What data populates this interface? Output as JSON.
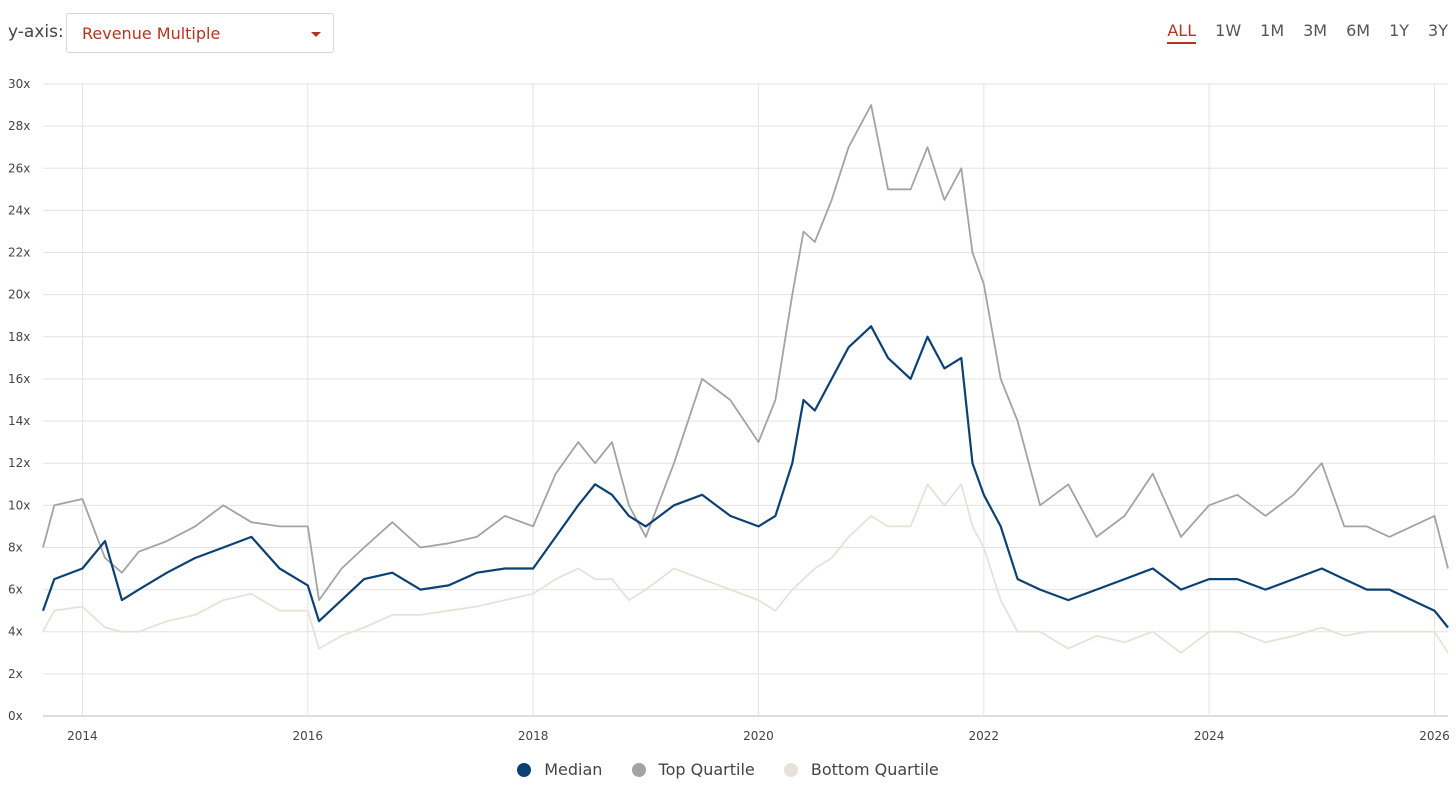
{
  "controls": {
    "yaxis_label": "y-axis:",
    "metric_selected": "Revenue Multiple",
    "range_tabs": [
      "ALL",
      "1W",
      "1M",
      "3M",
      "6M",
      "1Y",
      "3Y"
    ],
    "active_range": "ALL"
  },
  "chart_data": {
    "type": "line",
    "title": "",
    "xlabel": "",
    "ylabel": "",
    "x_domain": [
      2013.65,
      2026.12
    ],
    "ylim": [
      0,
      30
    ],
    "x_ticks": [
      {
        "value": 2014,
        "label": "2014"
      },
      {
        "value": 2016,
        "label": "2016"
      },
      {
        "value": 2018,
        "label": "2018"
      },
      {
        "value": 2020,
        "label": "2020"
      },
      {
        "value": 2022,
        "label": "2022"
      },
      {
        "value": 2024,
        "label": "2024"
      },
      {
        "value": 2026,
        "label": "2026"
      }
    ],
    "y_ticks": [
      {
        "value": 0,
        "label": "0x"
      },
      {
        "value": 2,
        "label": "2x"
      },
      {
        "value": 4,
        "label": "4x"
      },
      {
        "value": 6,
        "label": "6x"
      },
      {
        "value": 8,
        "label": "8x"
      },
      {
        "value": 10,
        "label": "10x"
      },
      {
        "value": 12,
        "label": "12x"
      },
      {
        "value": 14,
        "label": "14x"
      },
      {
        "value": 16,
        "label": "16x"
      },
      {
        "value": 18,
        "label": "18x"
      },
      {
        "value": 20,
        "label": "20x"
      },
      {
        "value": 22,
        "label": "22x"
      },
      {
        "value": 24,
        "label": "24x"
      },
      {
        "value": 26,
        "label": "26x"
      },
      {
        "value": 28,
        "label": "28x"
      },
      {
        "value": 30,
        "label": "30x"
      }
    ],
    "grid": true,
    "legend": "bottom-center",
    "x": [
      2013.65,
      2013.75,
      2014.0,
      2014.2,
      2014.35,
      2014.5,
      2014.75,
      2015.0,
      2015.25,
      2015.5,
      2015.75,
      2016.0,
      2016.1,
      2016.3,
      2016.5,
      2016.75,
      2017.0,
      2017.25,
      2017.5,
      2017.75,
      2018.0,
      2018.2,
      2018.4,
      2018.55,
      2018.7,
      2018.85,
      2019.0,
      2019.25,
      2019.5,
      2019.75,
      2020.0,
      2020.15,
      2020.3,
      2020.4,
      2020.5,
      2020.65,
      2020.8,
      2021.0,
      2021.15,
      2021.35,
      2021.5,
      2021.65,
      2021.8,
      2021.9,
      2022.0,
      2022.15,
      2022.3,
      2022.5,
      2022.75,
      2023.0,
      2023.25,
      2023.5,
      2023.75,
      2024.0,
      2024.25,
      2024.5,
      2024.75,
      2025.0,
      2025.2,
      2025.4,
      2025.6,
      2025.8,
      2026.0,
      2026.12
    ],
    "series": [
      {
        "name": "Top Quartile",
        "color": "#a3a3a3",
        "values": [
          8.0,
          10.0,
          10.3,
          7.5,
          6.8,
          7.8,
          8.3,
          9.0,
          10.0,
          9.2,
          9.0,
          9.0,
          5.5,
          7.0,
          8.0,
          9.2,
          8.0,
          8.2,
          8.5,
          9.5,
          9.0,
          11.5,
          13.0,
          12.0,
          13.0,
          10.0,
          8.5,
          12.0,
          16.0,
          15.0,
          13.0,
          15.0,
          20.0,
          23.0,
          22.5,
          24.5,
          27.0,
          29.0,
          25.0,
          25.0,
          27.0,
          24.5,
          26.0,
          22.0,
          20.5,
          16.0,
          14.0,
          10.0,
          11.0,
          8.5,
          9.5,
          11.5,
          8.5,
          10.0,
          10.5,
          9.5,
          10.5,
          12.0,
          9.0,
          9.0,
          8.5,
          9.0,
          9.5,
          7.0
        ]
      },
      {
        "name": "Median",
        "color": "#0d4174",
        "values": [
          5.0,
          6.5,
          7.0,
          8.3,
          5.5,
          6.0,
          6.8,
          7.5,
          8.0,
          8.5,
          7.0,
          6.2,
          4.5,
          5.5,
          6.5,
          6.8,
          6.0,
          6.2,
          6.8,
          7.0,
          7.0,
          8.5,
          10.0,
          11.0,
          10.5,
          9.5,
          9.0,
          10.0,
          10.5,
          9.5,
          9.0,
          9.5,
          12.0,
          15.0,
          14.5,
          16.0,
          17.5,
          18.5,
          17.0,
          16.0,
          18.0,
          16.5,
          17.0,
          12.0,
          10.5,
          9.0,
          6.5,
          6.0,
          5.5,
          6.0,
          6.5,
          7.0,
          6.0,
          6.5,
          6.5,
          6.0,
          6.5,
          7.0,
          6.5,
          6.0,
          6.0,
          5.5,
          5.0,
          4.2
        ]
      },
      {
        "name": "Bottom Quartile",
        "color": "#e8e1d8",
        "values": [
          4.0,
          5.0,
          5.2,
          4.2,
          4.0,
          4.0,
          4.5,
          4.8,
          5.5,
          5.8,
          5.0,
          5.0,
          3.2,
          3.8,
          4.2,
          4.8,
          4.8,
          5.0,
          5.2,
          5.5,
          5.8,
          6.5,
          7.0,
          6.5,
          6.5,
          5.5,
          6.0,
          7.0,
          6.5,
          6.0,
          5.5,
          5.0,
          6.0,
          6.5,
          7.0,
          7.5,
          8.5,
          9.5,
          9.0,
          9.0,
          11.0,
          10.0,
          11.0,
          9.0,
          8.0,
          5.5,
          4.0,
          4.0,
          3.2,
          3.8,
          3.5,
          4.0,
          3.0,
          4.0,
          4.0,
          3.5,
          3.8,
          4.2,
          3.8,
          4.0,
          4.0,
          4.0,
          4.0,
          3.0
        ]
      }
    ],
    "legend_order": [
      "Median",
      "Top Quartile",
      "Bottom Quartile"
    ]
  }
}
